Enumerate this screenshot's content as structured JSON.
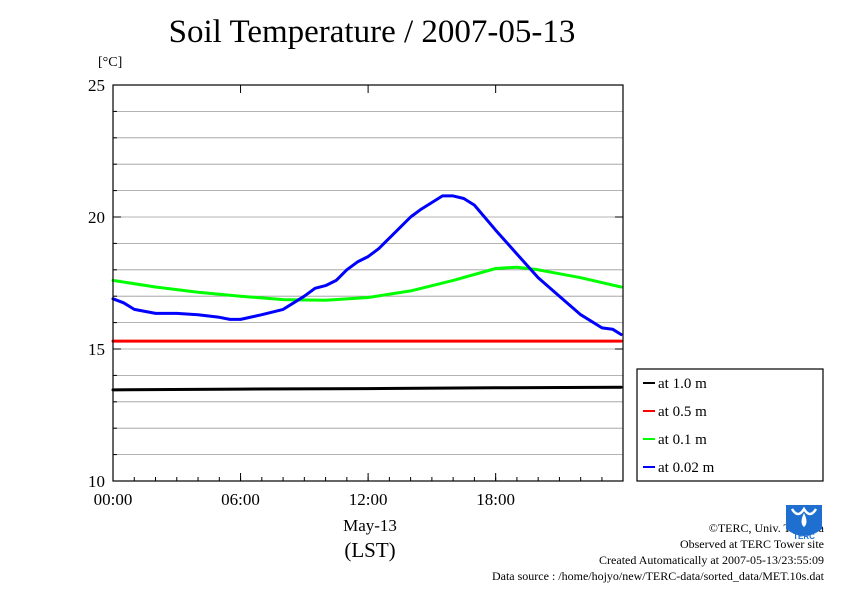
{
  "title": "Soil Temperature / 2007-05-13",
  "unit_label": "[°C]",
  "date_label": "May-13",
  "lst_label": "(LST)",
  "footer": {
    "copyright": "©TERC, Univ. Tsukuba",
    "observed": "Observed at TERC Tower site",
    "created": "Created Automatically at 2007-05-13/23:55:09",
    "source": "Data source : /home/hojyo/new/TERC-data/sorted_data/MET.10s.dat"
  },
  "logo_text": "TERC",
  "chart_data": {
    "type": "line",
    "title": "Soil Temperature / 2007-05-13",
    "xlabel": "(LST)",
    "ylabel": "[°C]",
    "xlim": [
      0,
      23.99
    ],
    "ylim": [
      10,
      25
    ],
    "x_ticks": [
      {
        "value": 0,
        "label": "00:00"
      },
      {
        "value": 6,
        "label": "06:00"
      },
      {
        "value": 12,
        "label": "12:00"
      },
      {
        "value": 18,
        "label": "18:00"
      }
    ],
    "y_ticks": [
      10,
      15,
      20,
      25
    ],
    "grid": "horizontal",
    "legend_position": "right",
    "series": [
      {
        "name": "at 1.0 m",
        "color": "#000000",
        "x": [
          0,
          6,
          12,
          18,
          23.9
        ],
        "y": [
          13.45,
          13.48,
          13.5,
          13.53,
          13.55
        ]
      },
      {
        "name": "at 0.5 m",
        "color": "#ff0000",
        "x": [
          0,
          6,
          12,
          18,
          23.9
        ],
        "y": [
          15.3,
          15.3,
          15.3,
          15.3,
          15.3
        ]
      },
      {
        "name": "at 0.1 m",
        "color": "#00ff00",
        "x": [
          0,
          2,
          4,
          6,
          8,
          10,
          12,
          14,
          16,
          18,
          19,
          20,
          22,
          23.9
        ],
        "y": [
          17.6,
          17.35,
          17.15,
          17.0,
          16.87,
          16.85,
          16.95,
          17.2,
          17.6,
          18.05,
          18.1,
          18.0,
          17.7,
          17.35
        ]
      },
      {
        "name": "at 0.02 m",
        "color": "#0000ff",
        "x": [
          0,
          0.5,
          1,
          2,
          3,
          4,
          5,
          5.5,
          6,
          7,
          8,
          8.5,
          9,
          9.5,
          10,
          10.5,
          11,
          11.5,
          12,
          12.5,
          13,
          13.5,
          14,
          14.5,
          15,
          15.5,
          16,
          16.5,
          17,
          18,
          19,
          20,
          21,
          22,
          23,
          23.5,
          23.9
        ],
        "y": [
          16.9,
          16.75,
          16.5,
          16.35,
          16.35,
          16.3,
          16.2,
          16.12,
          16.12,
          16.3,
          16.5,
          16.75,
          17.0,
          17.3,
          17.4,
          17.6,
          18.0,
          18.3,
          18.5,
          18.8,
          19.2,
          19.6,
          20.0,
          20.3,
          20.55,
          20.8,
          20.8,
          20.7,
          20.45,
          19.5,
          18.6,
          17.7,
          17.0,
          16.3,
          15.8,
          15.75,
          15.55
        ]
      }
    ]
  }
}
